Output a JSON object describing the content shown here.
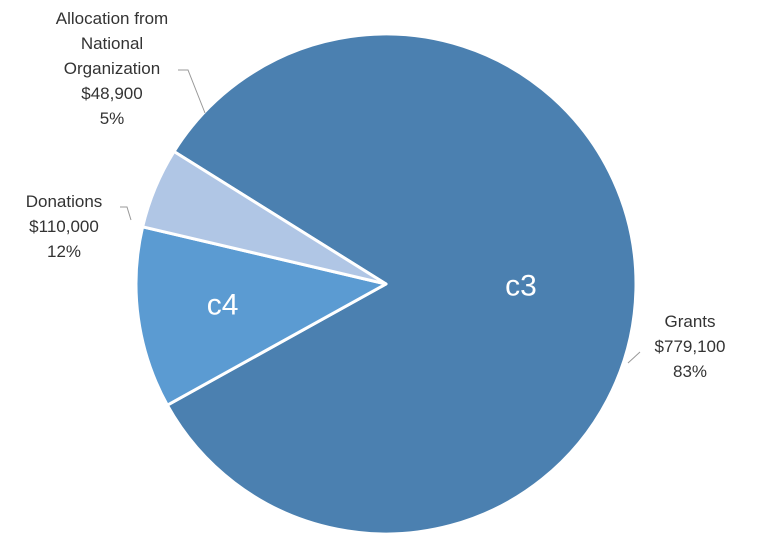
{
  "chart_data": {
    "type": "pie",
    "slices": [
      {
        "label_lines": [
          "Grants",
          "$779,100",
          "83%"
        ],
        "value": 779100,
        "percent": 83,
        "inner_label": "c3",
        "color": "#4b80b0"
      },
      {
        "label_lines": [
          "Donations",
          "$110,000",
          "12%"
        ],
        "value": 110000,
        "percent": 12,
        "inner_label": "c4",
        "color": "#5b9bd2"
      },
      {
        "label_lines": [
          "Allocation from",
          "National",
          "Organization",
          "$48,900",
          "5%"
        ],
        "value": 48900,
        "percent": 5,
        "inner_label": "",
        "color": "#b0c6e5"
      }
    ],
    "slice_border_color": "#ffffff"
  }
}
